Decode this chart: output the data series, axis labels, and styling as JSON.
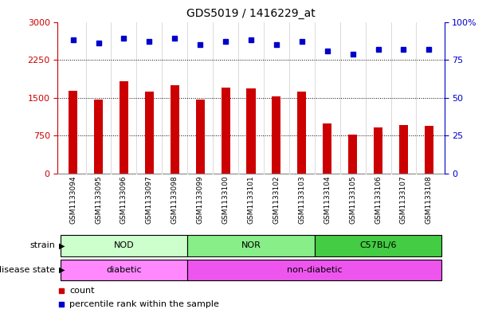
{
  "title": "GDS5019 / 1416229_at",
  "samples": [
    "GSM1133094",
    "GSM1133095",
    "GSM1133096",
    "GSM1133097",
    "GSM1133098",
    "GSM1133099",
    "GSM1133100",
    "GSM1133101",
    "GSM1133102",
    "GSM1133103",
    "GSM1133104",
    "GSM1133105",
    "GSM1133106",
    "GSM1133107",
    "GSM1133108"
  ],
  "counts": [
    1640,
    1470,
    1820,
    1620,
    1750,
    1460,
    1700,
    1690,
    1530,
    1620,
    1000,
    780,
    920,
    960,
    940
  ],
  "percentiles": [
    88,
    86,
    89,
    87,
    89,
    85,
    87,
    88,
    85,
    87,
    81,
    79,
    82,
    82,
    82
  ],
  "bar_color": "#cc0000",
  "dot_color": "#0000cc",
  "ylim_left": [
    0,
    3000
  ],
  "ylim_right": [
    0,
    100
  ],
  "yticks_left": [
    0,
    750,
    1500,
    2250,
    3000
  ],
  "yticks_right": [
    0,
    25,
    50,
    75,
    100
  ],
  "ytick_labels_right": [
    "0",
    "25",
    "50",
    "75",
    "100%"
  ],
  "grid_lines": [
    750,
    1500,
    2250
  ],
  "strain_groups": [
    {
      "label": "NOD",
      "start": 0,
      "end": 4,
      "color": "#ccffcc"
    },
    {
      "label": "NOR",
      "start": 5,
      "end": 9,
      "color": "#88ee88"
    },
    {
      "label": "C57BL/6",
      "start": 10,
      "end": 14,
      "color": "#44cc44"
    }
  ],
  "disease_groups": [
    {
      "label": "diabetic",
      "start": 0,
      "end": 4,
      "color": "#ff88ff"
    },
    {
      "label": "non-diabetic",
      "start": 5,
      "end": 14,
      "color": "#ee55ee"
    }
  ],
  "label_strain": "strain",
  "label_disease": "disease state",
  "label_count": "count",
  "label_percentile": "percentile rank within the sample",
  "background_color": "#ffffff",
  "tick_color_left": "#cc0000",
  "tick_color_right": "#0000cc",
  "xtick_bg_color": "#cccccc",
  "bar_width": 0.35
}
